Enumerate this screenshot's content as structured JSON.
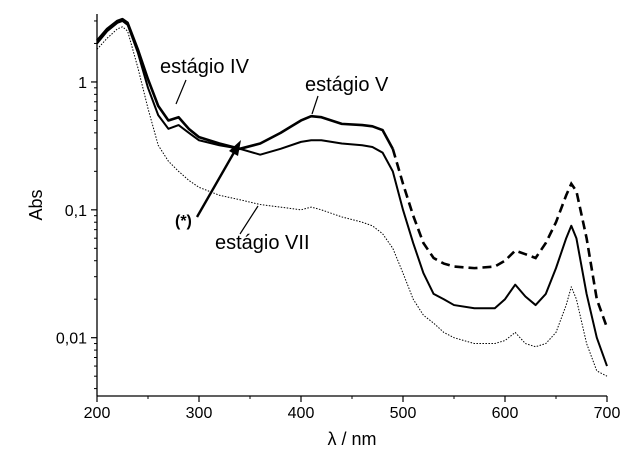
{
  "chart_data": {
    "type": "line",
    "title": "",
    "xlabel": "λ / nm",
    "ylabel": "Abs",
    "xlim": [
      200,
      700
    ],
    "ylim": [
      0.0035,
      3.4
    ],
    "yscale": "log",
    "x_ticks": [
      200,
      300,
      400,
      500,
      600,
      700
    ],
    "x_tick_labels": [
      "200",
      "300",
      "400",
      "500",
      "600",
      "700"
    ],
    "y_ticks": [
      0.01,
      0.1,
      1
    ],
    "y_tick_labels": [
      "0,01",
      "0,1",
      "1"
    ],
    "grid": false,
    "legend": "none",
    "series": [
      {
        "name": "estágio IV",
        "style": "bold-dashed",
        "x": [
          200,
          210,
          220,
          225,
          230,
          240,
          250,
          260,
          270,
          280,
          290,
          300,
          320,
          340,
          360,
          380,
          400,
          410,
          420,
          440,
          460,
          470,
          480,
          490,
          500,
          510,
          520,
          530,
          540,
          550,
          570,
          590,
          600,
          610,
          620,
          630,
          640,
          650,
          660,
          665,
          670,
          680,
          690,
          700
        ],
        "y": [
          2.1,
          2.6,
          3.0,
          3.1,
          2.9,
          1.8,
          1.05,
          0.65,
          0.5,
          0.53,
          0.43,
          0.37,
          0.33,
          0.3,
          0.33,
          0.4,
          0.5,
          0.54,
          0.53,
          0.47,
          0.46,
          0.45,
          0.42,
          0.3,
          0.16,
          0.09,
          0.055,
          0.042,
          0.038,
          0.036,
          0.035,
          0.036,
          0.04,
          0.048,
          0.045,
          0.042,
          0.055,
          0.08,
          0.13,
          0.16,
          0.14,
          0.06,
          0.02,
          0.012
        ]
      },
      {
        "name": "estágio V",
        "style": "solid",
        "x": [
          200,
          210,
          220,
          225,
          230,
          240,
          250,
          260,
          270,
          280,
          290,
          300,
          320,
          340,
          360,
          380,
          400,
          410,
          420,
          440,
          460,
          470,
          480,
          490,
          500,
          510,
          520,
          530,
          540,
          550,
          570,
          590,
          600,
          610,
          620,
          630,
          640,
          650,
          660,
          665,
          670,
          680,
          690,
          700
        ],
        "y": [
          2.0,
          2.5,
          2.9,
          3.0,
          2.8,
          1.7,
          0.9,
          0.55,
          0.43,
          0.46,
          0.4,
          0.35,
          0.32,
          0.3,
          0.27,
          0.3,
          0.34,
          0.35,
          0.35,
          0.33,
          0.32,
          0.31,
          0.28,
          0.2,
          0.1,
          0.055,
          0.032,
          0.022,
          0.02,
          0.018,
          0.017,
          0.017,
          0.02,
          0.026,
          0.021,
          0.018,
          0.022,
          0.035,
          0.06,
          0.075,
          0.06,
          0.022,
          0.01,
          0.006
        ]
      },
      {
        "name": "estágio VII",
        "style": "dotted",
        "x": [
          200,
          210,
          220,
          225,
          230,
          240,
          250,
          260,
          270,
          280,
          290,
          300,
          320,
          340,
          360,
          380,
          400,
          410,
          420,
          440,
          460,
          470,
          480,
          490,
          500,
          510,
          520,
          530,
          540,
          550,
          570,
          590,
          600,
          610,
          620,
          630,
          640,
          650,
          660,
          665,
          670,
          680,
          690,
          700
        ],
        "y": [
          1.8,
          2.2,
          2.6,
          2.7,
          2.5,
          1.3,
          0.62,
          0.32,
          0.24,
          0.2,
          0.17,
          0.15,
          0.13,
          0.12,
          0.11,
          0.105,
          0.1,
          0.105,
          0.1,
          0.088,
          0.08,
          0.075,
          0.065,
          0.05,
          0.032,
          0.02,
          0.015,
          0.013,
          0.011,
          0.01,
          0.009,
          0.009,
          0.0095,
          0.011,
          0.009,
          0.0085,
          0.009,
          0.011,
          0.018,
          0.025,
          0.02,
          0.009,
          0.0055,
          0.005
        ]
      }
    ],
    "annotations": [
      {
        "text": "estágio IV",
        "target_series": 0
      },
      {
        "text": "estágio V",
        "target_series": 1
      },
      {
        "text": "estágio VII",
        "target_series": 2
      },
      {
        "text": "(*)",
        "arrow": true
      }
    ]
  }
}
